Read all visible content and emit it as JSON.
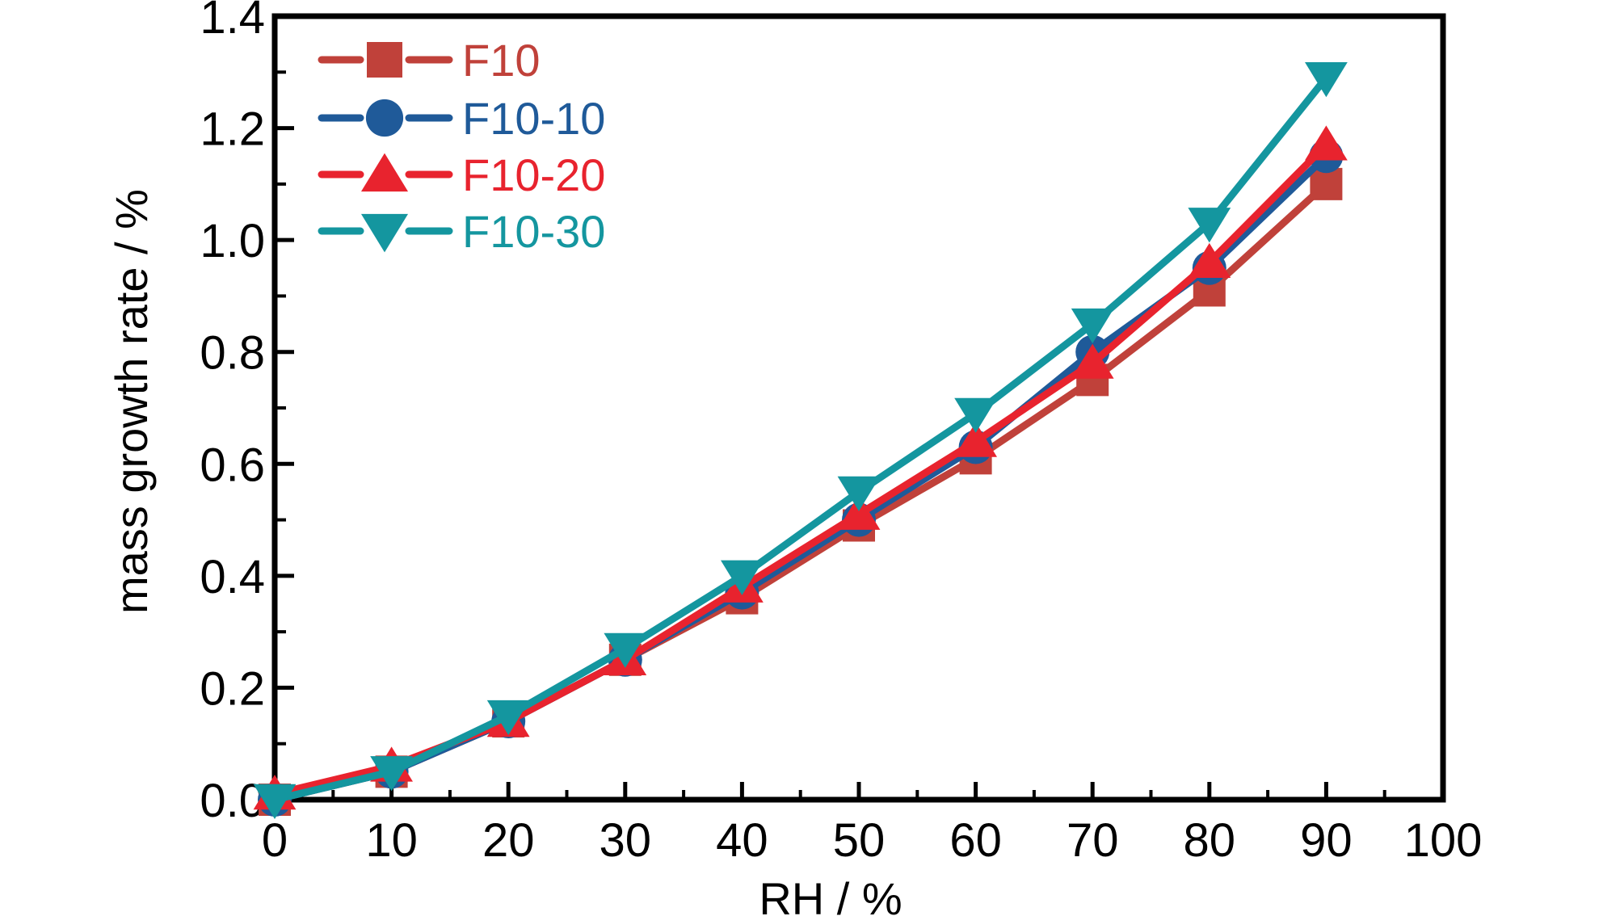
{
  "chart_data": {
    "type": "line",
    "title": "",
    "xlabel": "RH / %",
    "ylabel": "mass growth rate / %",
    "xlim": [
      0,
      100
    ],
    "ylim": [
      0,
      1.4
    ],
    "x_ticks": [
      "0",
      "10",
      "20",
      "30",
      "40",
      "50",
      "60",
      "70",
      "80",
      "90",
      "100"
    ],
    "y_ticks": [
      "0.0",
      "0.2",
      "0.4",
      "0.6",
      "0.8",
      "1.0",
      "1.2",
      "1.4"
    ],
    "grid": false,
    "legend_position": "top-left",
    "x": [
      0,
      10,
      20,
      30,
      40,
      50,
      60,
      70,
      80,
      90
    ],
    "series": [
      {
        "name": "F10",
        "marker": "square",
        "color": "#C0413A",
        "values": [
          0.0,
          0.05,
          0.14,
          0.25,
          0.36,
          0.49,
          0.61,
          0.75,
          0.91,
          1.1
        ]
      },
      {
        "name": "F10-10",
        "marker": "circle",
        "color": "#1F5A99",
        "values": [
          0.0,
          0.05,
          0.14,
          0.25,
          0.37,
          0.5,
          0.63,
          0.8,
          0.95,
          1.15
        ]
      },
      {
        "name": "F10-20",
        "marker": "triangle-up",
        "color": "#E8232E",
        "values": [
          0.01,
          0.06,
          0.14,
          0.25,
          0.38,
          0.51,
          0.64,
          0.78,
          0.96,
          1.17
        ]
      },
      {
        "name": "F10-30",
        "marker": "triangle-down",
        "color": "#14969F",
        "values": [
          0.0,
          0.05,
          0.15,
          0.27,
          0.4,
          0.55,
          0.69,
          0.85,
          1.03,
          1.29
        ]
      }
    ]
  }
}
